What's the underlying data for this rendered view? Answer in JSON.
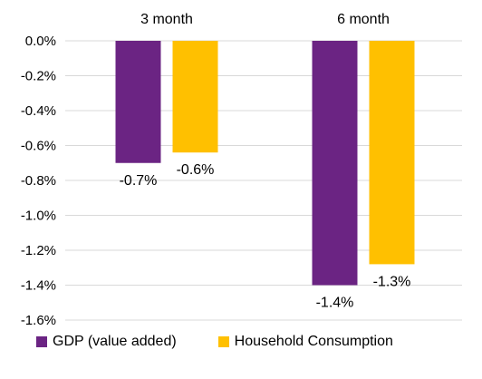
{
  "chart_data": {
    "type": "bar",
    "categories": [
      "3 month",
      "6 month"
    ],
    "series": [
      {
        "name": "GDP (value added)",
        "values": [
          -0.7,
          -1.4
        ],
        "labels": [
          "-0.7%",
          "-1.4%"
        ],
        "color": "#6B2483"
      },
      {
        "name": "Household Consumption",
        "values": [
          -0.64,
          -1.28
        ],
        "labels": [
          "-0.6%",
          "-1.3%"
        ],
        "color": "#FFC000"
      }
    ],
    "y_ticks": [
      {
        "value": 0.0,
        "label": "0.0%"
      },
      {
        "value": -0.2,
        "label": "-0.2%"
      },
      {
        "value": -0.4,
        "label": "-0.4%"
      },
      {
        "value": -0.6,
        "label": "-0.6%"
      },
      {
        "value": -0.8,
        "label": "-0.8%"
      },
      {
        "value": -1.0,
        "label": "-1.0%"
      },
      {
        "value": -1.2,
        "label": "-1.2%"
      },
      {
        "value": -1.4,
        "label": "-1.4%"
      },
      {
        "value": -1.6,
        "label": "-1.6%"
      }
    ],
    "ylim": [
      -1.6,
      0
    ],
    "grid": true,
    "legend_position": "bottom",
    "category_label_position": "top",
    "gridline_color": "#D9D9D9"
  }
}
